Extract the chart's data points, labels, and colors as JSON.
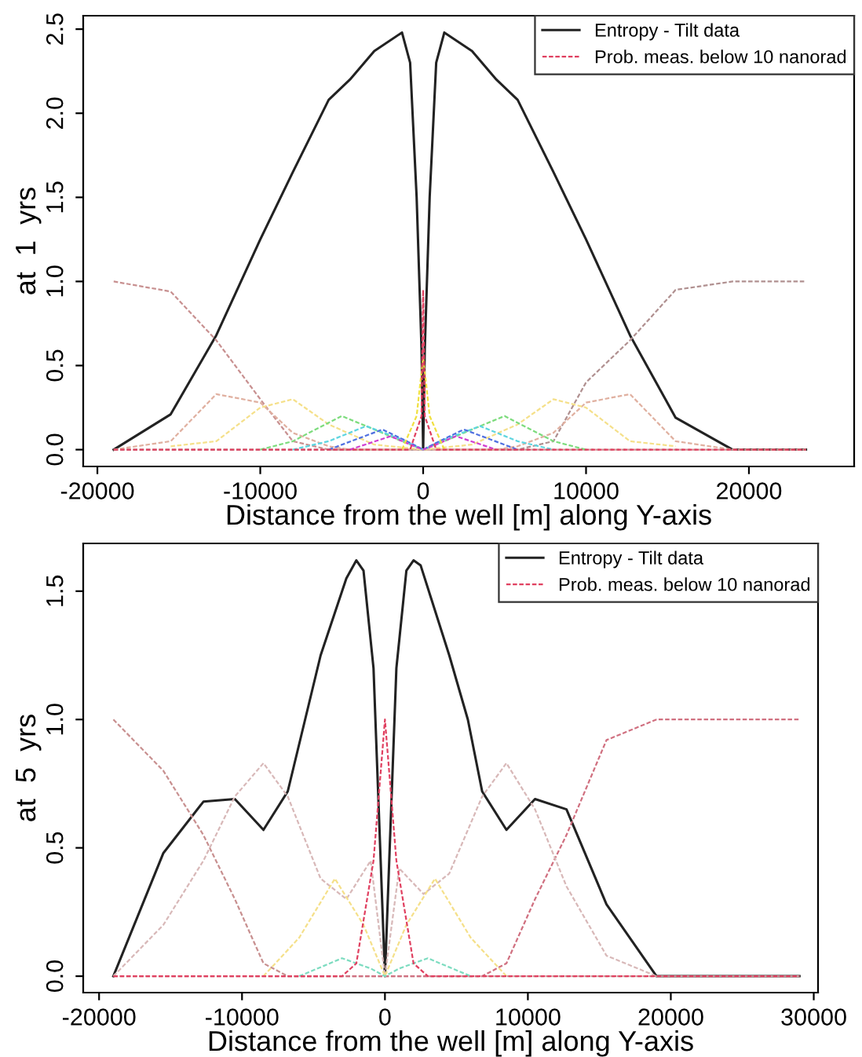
{
  "chart_data": [
    {
      "type": "line",
      "xlabel": "Distance from the well [m] along Y-axis",
      "ylabel": "at  1  yrs",
      "xlim": [
        -20870,
        26460
      ],
      "ylim": [
        -0.1,
        2.58
      ],
      "xticks": [
        -20000,
        -10000,
        0,
        10000,
        20000
      ],
      "yticks": [
        {
          "value": 0,
          "label": "0.0"
        },
        {
          "value": 0.5,
          "label": "0.5"
        },
        {
          "value": 1,
          "label": "1.0"
        },
        {
          "value": 1.5,
          "label": "1.5"
        },
        {
          "value": 2,
          "label": "2.0"
        },
        {
          "value": 2.5,
          "label": "2.5"
        }
      ],
      "legend": "top right",
      "grid": false,
      "series": [
        {
          "name": "Entropy - Tilt data",
          "color": "#222222",
          "line_style": "solid",
          "x": [
            -19000,
            -15500,
            -12700,
            -10000,
            -8000,
            -5800,
            -4500,
            -3000,
            -1300,
            -800,
            -400,
            -100,
            0,
            100,
            400,
            800,
            1300,
            3000,
            4500,
            5800,
            8000,
            10000,
            12700,
            15500,
            19000,
            23500
          ],
          "values": [
            0,
            0.21,
            0.68,
            1.25,
            1.65,
            2.08,
            2.2,
            2.37,
            2.48,
            2.3,
            1.5,
            0.6,
            0,
            0.6,
            1.5,
            2.3,
            2.48,
            2.37,
            2.2,
            2.08,
            1.65,
            1.25,
            0.68,
            0.19,
            0,
            0
          ]
        },
        {
          "color": "#c89090",
          "line_style": "dashed",
          "x": [
            -19000,
            -15500,
            -12700,
            -10000,
            -8000,
            -5800,
            23500
          ],
          "values": [
            1,
            0.94,
            0.65,
            0.3,
            0.05,
            0,
            0
          ]
        },
        {
          "color": "#b09090",
          "line_style": "dashed",
          "x": [
            -19000,
            5800,
            8000,
            10000,
            12700,
            15500,
            19000,
            23500
          ],
          "values": [
            0,
            0,
            0.05,
            0.4,
            0.65,
            0.95,
            1,
            1
          ]
        },
        {
          "color": "#e0b0a0",
          "line_style": "dashed",
          "x": [
            -19000,
            -15500,
            -12700,
            -10000,
            -8000,
            -5800,
            -4500,
            4500,
            5800,
            8000,
            10000,
            12700,
            15500,
            19000,
            23500
          ],
          "values": [
            0,
            0.05,
            0.33,
            0.28,
            0.1,
            0.02,
            0,
            0,
            0.02,
            0.1,
            0.28,
            0.33,
            0.05,
            0,
            0
          ]
        },
        {
          "color": "#f5e08a",
          "line_style": "dashed",
          "x": [
            -15500,
            -12700,
            -10000,
            -8000,
            -5800,
            -3000,
            0,
            3000,
            5800,
            8000,
            10000,
            12700,
            15500
          ],
          "values": [
            0.02,
            0.05,
            0.25,
            0.3,
            0.15,
            0.03,
            0,
            0.03,
            0.15,
            0.3,
            0.25,
            0.05,
            0.02
          ]
        },
        {
          "color": "#7ddc7d",
          "line_style": "dashed",
          "x": [
            -10000,
            -8000,
            -5000,
            -3000,
            -1300,
            0,
            1300,
            3000,
            5000,
            8000,
            10000
          ],
          "values": [
            0,
            0.05,
            0.2,
            0.12,
            0.05,
            0,
            0.05,
            0.12,
            0.2,
            0.05,
            0
          ]
        },
        {
          "color": "#5fd5e0",
          "line_style": "dashed",
          "x": [
            -8000,
            -5800,
            -3500,
            -1300,
            0,
            1300,
            3500,
            5800,
            8000
          ],
          "values": [
            0,
            0.05,
            0.14,
            0.06,
            0,
            0.06,
            0.14,
            0.05,
            0
          ]
        },
        {
          "color": "#5070e0",
          "line_style": "dashed",
          "x": [
            -5800,
            -2500,
            -1000,
            0,
            1000,
            2500,
            5800
          ],
          "values": [
            0,
            0.12,
            0.05,
            0,
            0.05,
            0.12,
            0
          ]
        },
        {
          "color": "#d040d0",
          "line_style": "dashed",
          "x": [
            -4500,
            -2000,
            -800,
            0,
            800,
            2000,
            4500
          ],
          "values": [
            0,
            0.08,
            0.03,
            0,
            0.03,
            0.08,
            0
          ]
        },
        {
          "color": "#f0e040",
          "line_style": "dashed",
          "x": [
            -1300,
            -400,
            0,
            400,
            1300
          ],
          "values": [
            0,
            0.2,
            0.55,
            0.2,
            0
          ]
        },
        {
          "name": "Prob. meas. below 10 nanorad",
          "color": "#e04060",
          "line_style": "dashed",
          "x": [
            -19000,
            -800,
            -100,
            0,
            100,
            800,
            19000,
            23500
          ],
          "values": [
            0,
            0,
            0.2,
            0.95,
            0.2,
            0,
            0,
            0
          ]
        }
      ]
    },
    {
      "type": "line",
      "xlabel": "Distance from the well [m] along Y-axis",
      "ylabel": "at  5  yrs",
      "xlim": [
        -21110,
        30300
      ],
      "ylim": [
        -0.064,
        1.686
      ],
      "xticks": [
        -20000,
        -10000,
        0,
        10000,
        20000,
        30000
      ],
      "yticks": [
        {
          "value": 0,
          "label": "0.0"
        },
        {
          "value": 0.5,
          "label": "0.5"
        },
        {
          "value": 1,
          "label": "1.0"
        },
        {
          "value": 1.5,
          "label": "1.5"
        }
      ],
      "legend": "top right",
      "grid": false,
      "series": [
        {
          "name": "Entropy - Tilt data",
          "color": "#222222",
          "line_style": "solid",
          "x": [
            -19000,
            -15500,
            -12700,
            -10500,
            -8500,
            -6800,
            -4500,
            -2700,
            -2000,
            -1500,
            -800,
            -200,
            0,
            200,
            800,
            1500,
            2000,
            2500,
            4500,
            5800,
            6800,
            8500,
            10500,
            12700,
            15500,
            19000,
            29000
          ],
          "values": [
            0,
            0.48,
            0.68,
            0.69,
            0.57,
            0.72,
            1.25,
            1.55,
            1.62,
            1.58,
            1.2,
            0.3,
            0,
            0.3,
            1.2,
            1.58,
            1.62,
            1.6,
            1.25,
            1.0,
            0.72,
            0.57,
            0.69,
            0.65,
            0.28,
            0,
            0
          ]
        },
        {
          "color": "#c89090",
          "line_style": "dashed",
          "x": [
            -19000,
            -15500,
            -12700,
            -10500,
            -8500,
            -6800,
            29000
          ],
          "values": [
            1,
            0.8,
            0.55,
            0.3,
            0.05,
            0,
            0
          ]
        },
        {
          "color": "#d07080",
          "line_style": "dashed",
          "x": [
            -19000,
            6800,
            8500,
            10500,
            12700,
            15500,
            19000,
            29000
          ],
          "values": [
            0,
            0,
            0.05,
            0.3,
            0.55,
            0.92,
            1,
            1
          ]
        },
        {
          "color": "#d8b8b8",
          "line_style": "dashed",
          "x": [
            -19000,
            -15500,
            -12700,
            -10500,
            -8500,
            -6800,
            -4500,
            -2700,
            -1000,
            0,
            1000,
            2700,
            4500,
            6800,
            8500,
            10500,
            12700,
            15500,
            19000,
            29000
          ],
          "values": [
            0,
            0.2,
            0.45,
            0.7,
            0.83,
            0.7,
            0.38,
            0.3,
            0.45,
            0,
            0.42,
            0.32,
            0.4,
            0.7,
            0.83,
            0.65,
            0.35,
            0.08,
            0,
            0
          ]
        },
        {
          "color": "#f5e08a",
          "line_style": "dashed",
          "x": [
            -8500,
            -6000,
            -3500,
            -1500,
            0,
            1500,
            3500,
            6000,
            8500
          ],
          "values": [
            0,
            0.15,
            0.38,
            0.2,
            0,
            0.2,
            0.38,
            0.15,
            0
          ]
        },
        {
          "color": "#7ddcc0",
          "line_style": "dashed",
          "x": [
            -6000,
            -3000,
            -1000,
            0,
            1000,
            3000,
            6000
          ],
          "values": [
            0,
            0.07,
            0.03,
            0,
            0.03,
            0.07,
            0
          ]
        },
        {
          "name": "Prob. meas. below 10 nanorad",
          "color": "#e04060",
          "line_style": "dashed",
          "x": [
            -19000,
            -3000,
            -2000,
            -800,
            0,
            800,
            2000,
            3000,
            29000
          ],
          "values": [
            0,
            0,
            0.05,
            0.45,
            1.0,
            0.45,
            0.05,
            0,
            0
          ]
        }
      ]
    }
  ]
}
